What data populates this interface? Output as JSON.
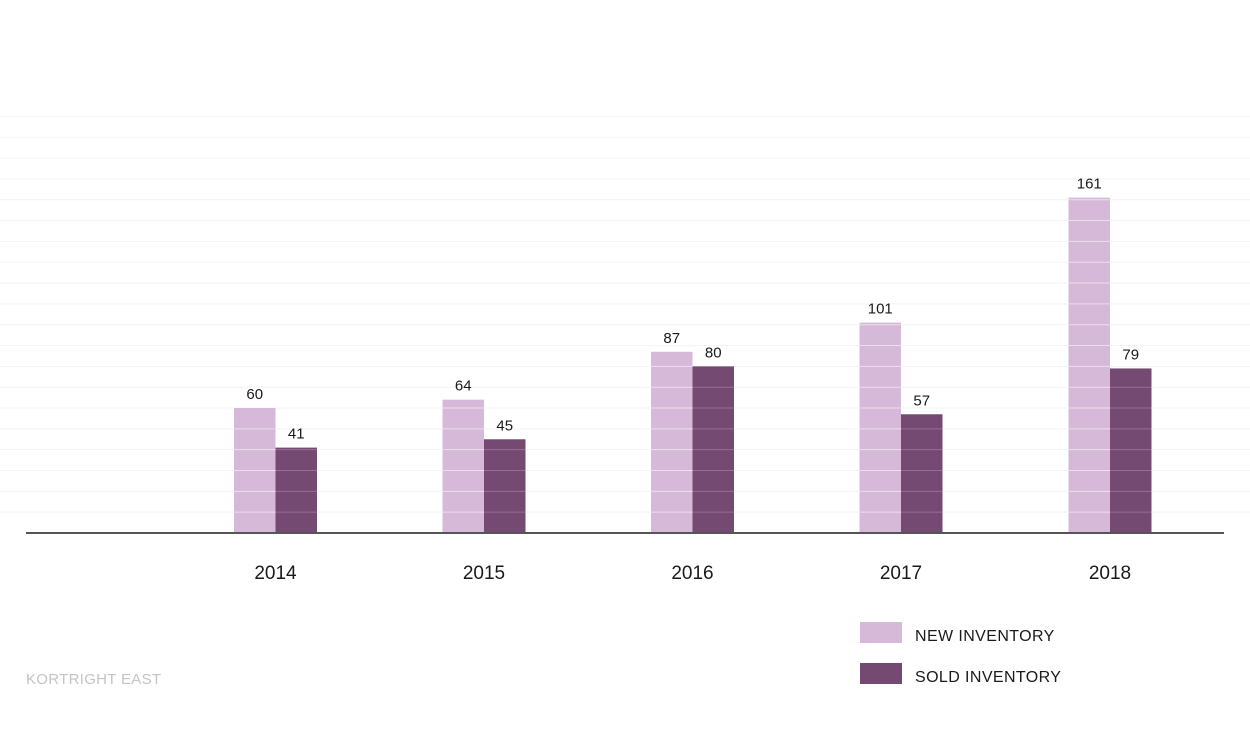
{
  "chart_data": {
    "type": "bar",
    "categories": [
      "2014",
      "2015",
      "2016",
      "2017",
      "2018"
    ],
    "series": [
      {
        "name": "NEW INVENTORY",
        "values": [
          60,
          64,
          87,
          101,
          161
        ],
        "color": "#d6b8d8"
      },
      {
        "name": "SOLD INVENTORY",
        "values": [
          41,
          45,
          80,
          57,
          79
        ],
        "color": "#754a72"
      }
    ],
    "title": "",
    "xlabel": "",
    "ylabel": "",
    "ylim": [
      0,
      200
    ],
    "grid": true,
    "legend": "bottom-right",
    "axis_color": "#555555",
    "grid_color": "#f3f3f3"
  },
  "footer": {
    "label": "KORTRIGHT EAST"
  }
}
